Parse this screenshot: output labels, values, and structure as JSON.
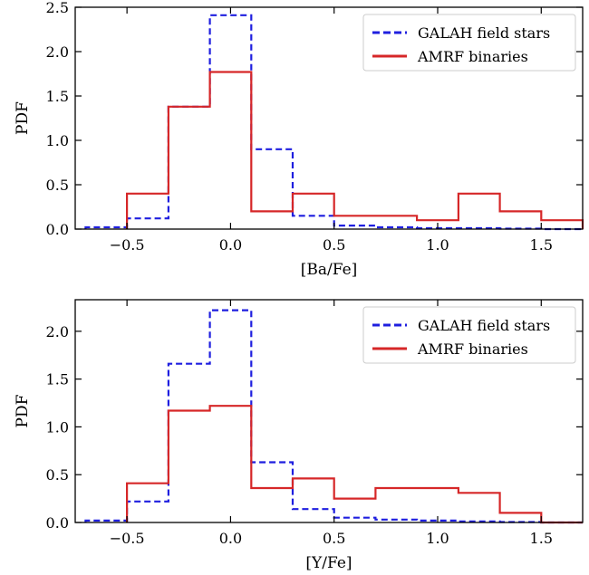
{
  "chart_data": [
    {
      "type": "histogram",
      "xlabel": "[Ba/Fe]",
      "ylabel": "PDF",
      "xlim": [
        -0.75,
        1.7
      ],
      "ylim": [
        0,
        2.5
      ],
      "xticks": [
        -0.5,
        0.0,
        0.5,
        1.0,
        1.5
      ],
      "xtick_labels": [
        "−0.5",
        "0.0",
        "0.5",
        "1.0",
        "1.5"
      ],
      "yticks": [
        0.0,
        0.5,
        1.0,
        1.5,
        2.0,
        2.5
      ],
      "ytick_labels": [
        "0.0",
        "0.5",
        "1.0",
        "1.5",
        "2.0",
        "2.5"
      ],
      "bin_edges": [
        -0.7,
        -0.5,
        -0.3,
        -0.1,
        0.1,
        0.3,
        0.5,
        0.7,
        0.9,
        1.1,
        1.3,
        1.5,
        1.7
      ],
      "legend_position": "top-right",
      "series": [
        {
          "name": "GALAH field stars",
          "color": "#1f1fdf",
          "style": "dashed",
          "values": [
            0.02,
            0.12,
            1.38,
            2.41,
            0.9,
            0.15,
            0.04,
            0.02,
            0.01,
            0.01,
            0.005,
            0.0
          ]
        },
        {
          "name": "AMRF binaries",
          "color": "#d62728",
          "style": "solid",
          "values": [
            null,
            0.4,
            1.38,
            1.77,
            0.2,
            0.4,
            0.15,
            0.15,
            0.1,
            0.4,
            0.2,
            0.1
          ]
        }
      ]
    },
    {
      "type": "histogram",
      "xlabel": "[Y/Fe]",
      "ylabel": "PDF",
      "xlim": [
        -0.75,
        1.7
      ],
      "ylim": [
        0,
        2.33
      ],
      "xticks": [
        -0.5,
        0.0,
        0.5,
        1.0,
        1.5
      ],
      "xtick_labels": [
        "−0.5",
        "0.0",
        "0.5",
        "1.0",
        "1.5"
      ],
      "yticks": [
        0.0,
        0.5,
        1.0,
        1.5,
        2.0
      ],
      "ytick_labels": [
        "0.0",
        "0.5",
        "1.0",
        "1.5",
        "2.0"
      ],
      "bin_edges": [
        -0.7,
        -0.5,
        -0.3,
        -0.1,
        0.1,
        0.3,
        0.5,
        0.7,
        0.9,
        1.1,
        1.3,
        1.5,
        1.7
      ],
      "legend_position": "top-right",
      "series": [
        {
          "name": "GALAH field stars",
          "color": "#1f1fdf",
          "style": "dashed",
          "values": [
            0.02,
            0.22,
            1.66,
            2.22,
            0.63,
            0.14,
            0.05,
            0.03,
            0.02,
            0.01,
            0.005,
            0.0
          ]
        },
        {
          "name": "AMRF binaries",
          "color": "#d62728",
          "style": "solid",
          "values": [
            null,
            0.41,
            1.17,
            1.22,
            0.36,
            0.46,
            0.25,
            0.36,
            0.36,
            0.31,
            0.1,
            0.0
          ]
        }
      ]
    }
  ]
}
